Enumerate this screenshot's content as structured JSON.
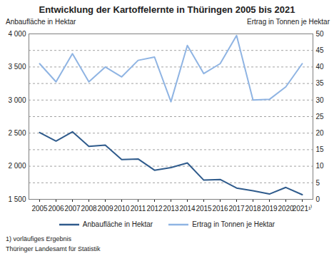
{
  "chart_data": {
    "type": "line",
    "title": "Entwicklung der Kartoffelernte in Thüringen 2005 bis 2021",
    "categories": [
      "2005",
      "2006",
      "2007",
      "2008",
      "2009",
      "2010",
      "2011",
      "2012",
      "2013",
      "2014",
      "2015",
      "2016",
      "2017",
      "2018",
      "2019",
      "2020",
      "2021¹⁾"
    ],
    "series": [
      {
        "name": "Anbaufläche in Hektar",
        "color": "#2f5b8c",
        "values": [
          2510,
          2380,
          2520,
          2300,
          2320,
          2100,
          2110,
          1940,
          1980,
          2050,
          1790,
          1800,
          1670,
          1630,
          1580,
          1680,
          1570
        ]
      },
      {
        "name": "Ertrag in Tonnen je Hektar",
        "color": "#8fb4e3",
        "axis": "y2",
        "values": [
          41,
          35.5,
          44,
          35.5,
          40,
          37,
          42,
          43,
          29.5,
          46.5,
          38,
          41,
          49.5,
          30,
          30.2,
          34,
          41
        ]
      }
    ],
    "ylabel": "Anbaufläche in Hektar",
    "y2label": "Ertrag in Tonnen je Hektar",
    "ylim": [
      1500,
      4000
    ],
    "yticks": [
      {
        "value": 1500,
        "label": "1 500"
      },
      {
        "value": 2000,
        "label": "2 000"
      },
      {
        "value": 2500,
        "label": "2 500"
      },
      {
        "value": 3000,
        "label": "3 000"
      },
      {
        "value": 3500,
        "label": "3 500"
      },
      {
        "value": 4000,
        "label": "4 000"
      }
    ],
    "y2lim": [
      0,
      50
    ],
    "y2ticks": [
      0,
      5,
      10,
      15,
      20,
      25,
      30,
      35,
      40,
      45,
      50
    ],
    "grid": true,
    "legend": "bottom",
    "footnote": "1) vorläufiges Ergebnis",
    "source": "Thüringer Landesamt für Statistik"
  }
}
